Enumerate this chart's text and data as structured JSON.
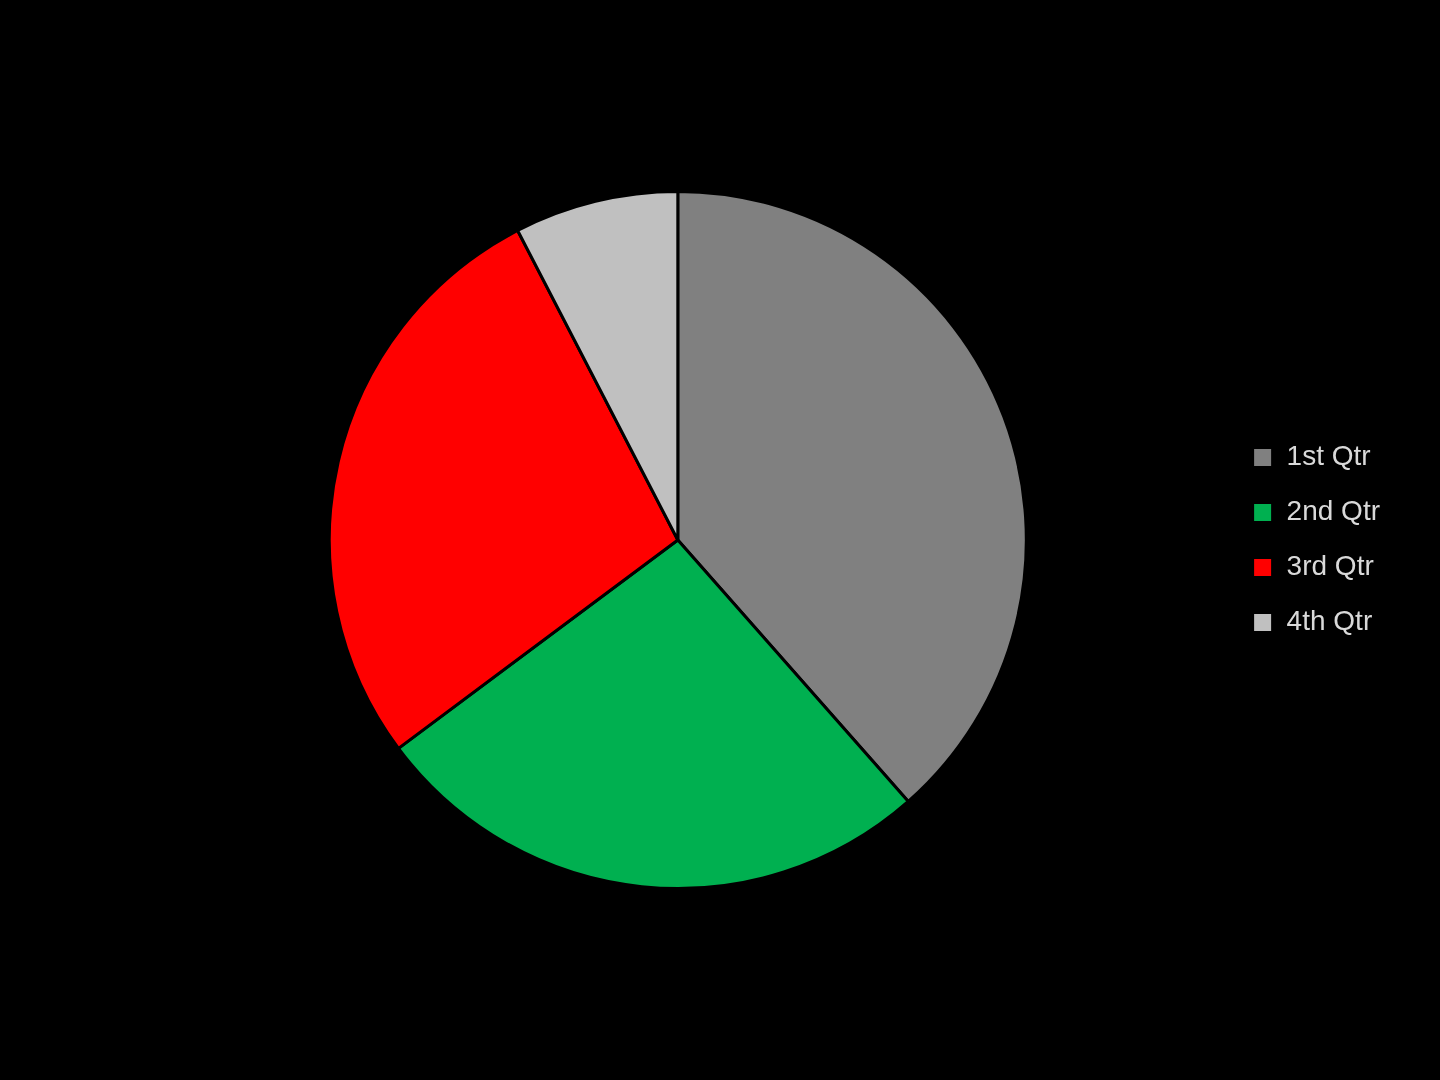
{
  "chart_data": {
    "type": "pie",
    "categories": [
      "1st Qtr",
      "2nd Qtr",
      "3rd Qtr",
      "4th Qtr"
    ],
    "values": [
      38.5,
      26.3,
      27.6,
      7.6
    ],
    "colors": [
      "#808080",
      "#00b050",
      "#ff0000",
      "#c0c0c0"
    ],
    "legend": "right"
  }
}
